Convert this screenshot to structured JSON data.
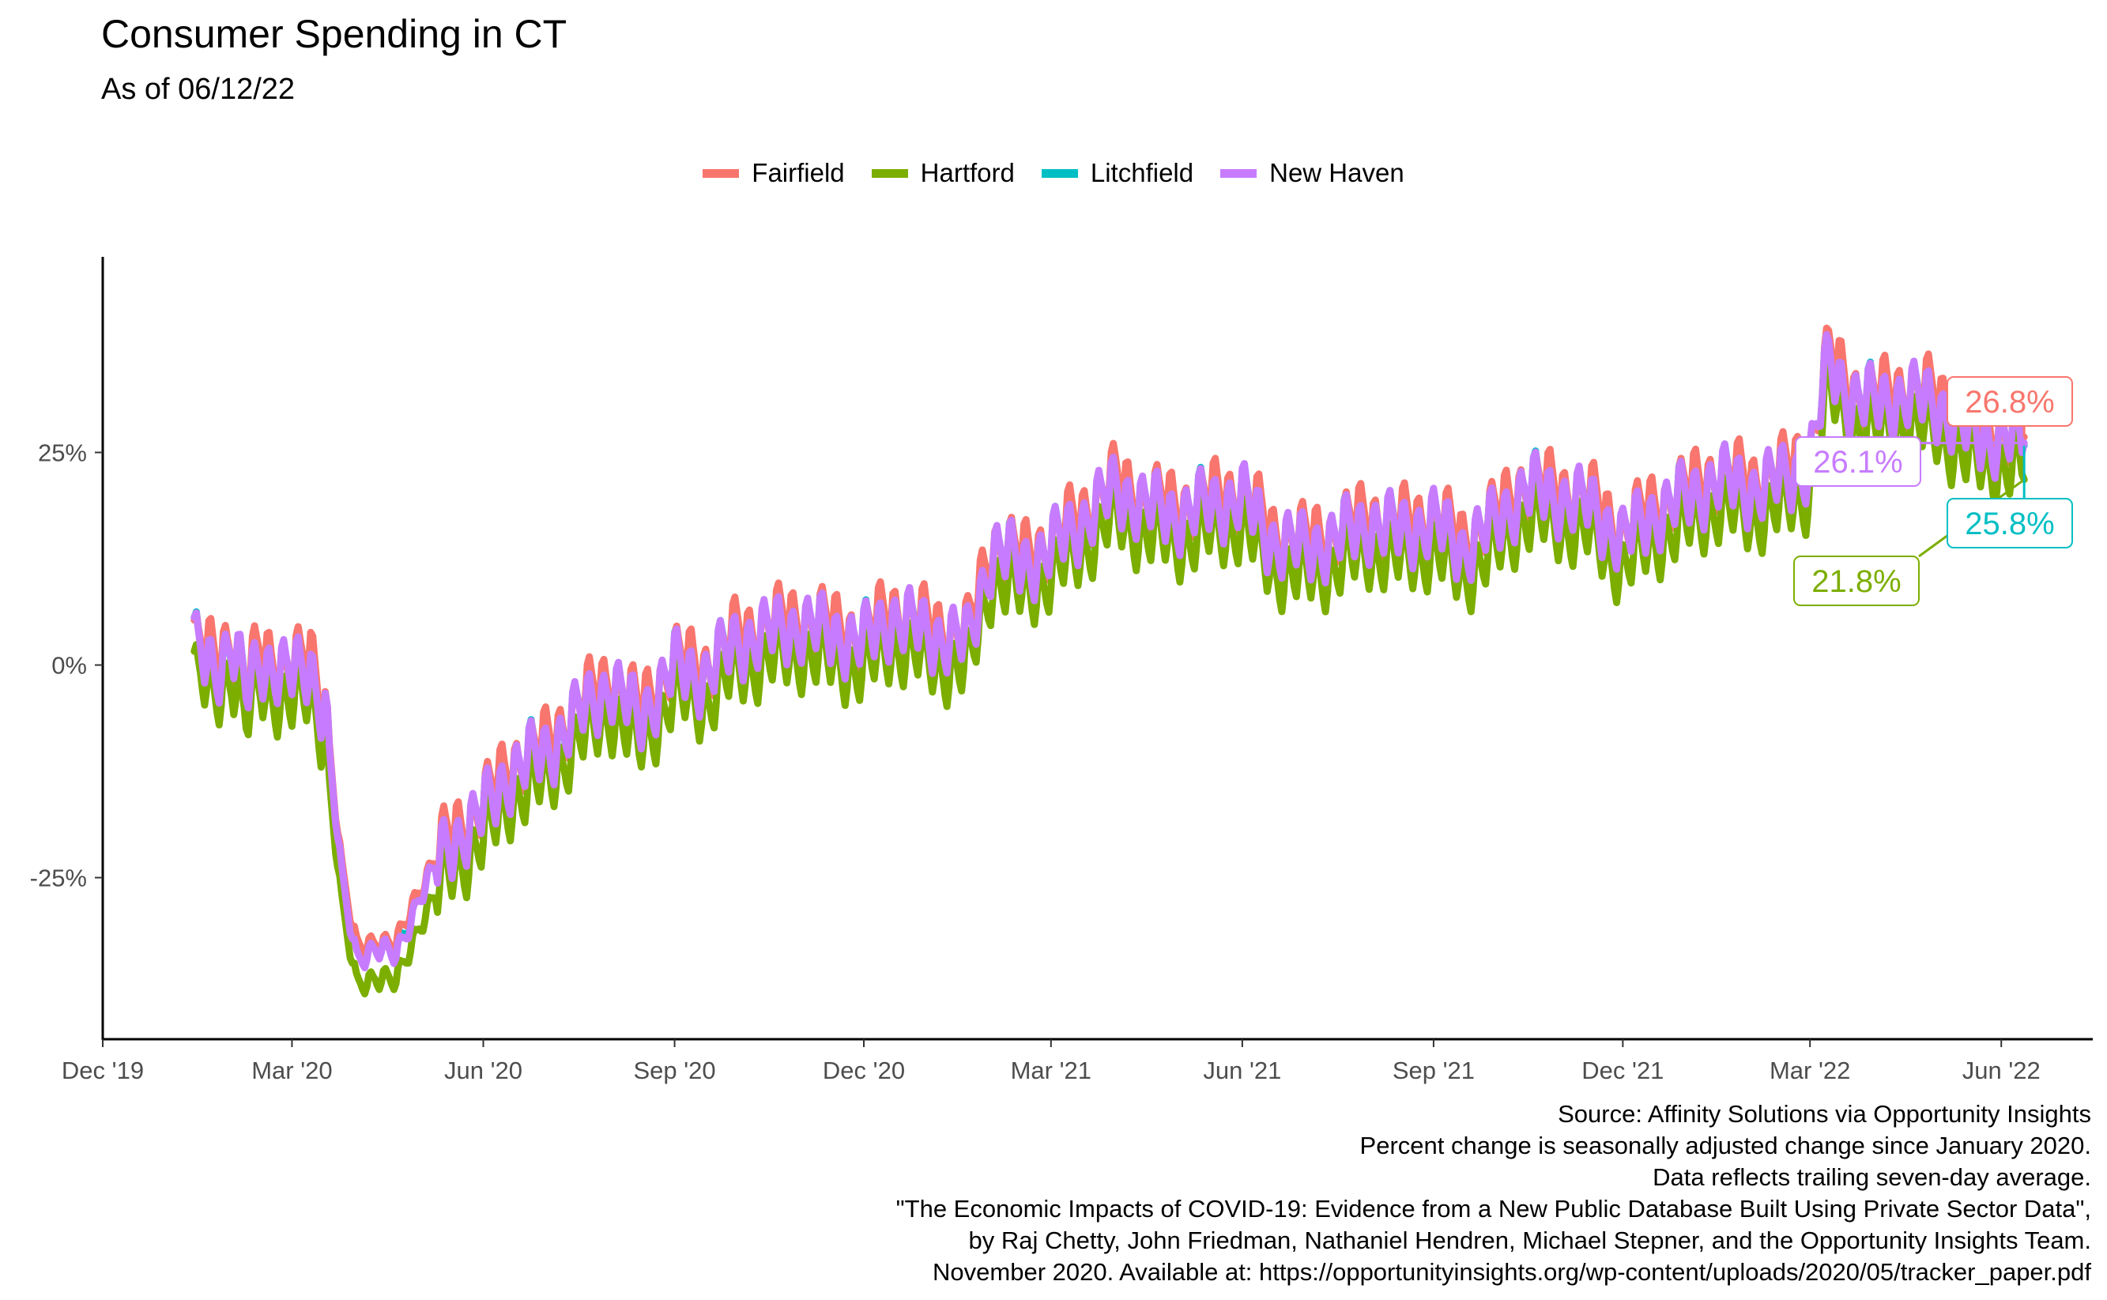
{
  "chart_data": {
    "type": "line",
    "title": "Consumer Spending in CT",
    "subtitle": "As of 06/12/22",
    "xlabel": "",
    "ylabel": "",
    "x_start": "2020-01-14",
    "x_end": "2022-06-12",
    "xlim": [
      "2019-12-01",
      "2022-07-15"
    ],
    "ylim": [
      -44,
      48
    ],
    "x_ticks": [
      {
        "date": "2019-12-01",
        "label": "Dec '19"
      },
      {
        "date": "2020-03-01",
        "label": "Mar '20"
      },
      {
        "date": "2020-06-01",
        "label": "Jun '20"
      },
      {
        "date": "2020-09-01",
        "label": "Sep '20"
      },
      {
        "date": "2020-12-01",
        "label": "Dec '20"
      },
      {
        "date": "2021-03-01",
        "label": "Mar '21"
      },
      {
        "date": "2021-06-01",
        "label": "Jun '21"
      },
      {
        "date": "2021-09-01",
        "label": "Sep '21"
      },
      {
        "date": "2021-12-01",
        "label": "Dec '21"
      },
      {
        "date": "2022-03-01",
        "label": "Mar '22"
      },
      {
        "date": "2022-06-01",
        "label": "Jun '22"
      }
    ],
    "y_ticks": [
      {
        "value": -25,
        "label": "-25%"
      },
      {
        "value": 0,
        "label": "0%"
      },
      {
        "value": 25,
        "label": "25%"
      }
    ],
    "grid": false,
    "legend_position": "top",
    "base_points": [
      [
        "2020-01-14",
        2
      ],
      [
        "2020-01-24",
        0
      ],
      [
        "2020-02-01",
        3
      ],
      [
        "2020-02-08",
        -3
      ],
      [
        "2020-02-15",
        1
      ],
      [
        "2020-03-01",
        -1
      ],
      [
        "2020-03-10",
        0
      ],
      [
        "2020-03-17",
        -5
      ],
      [
        "2020-03-25",
        -25
      ],
      [
        "2020-04-01",
        -34
      ],
      [
        "2020-04-10",
        -33
      ],
      [
        "2020-04-20",
        -34
      ],
      [
        "2020-05-01",
        -27
      ],
      [
        "2020-05-15",
        -21
      ],
      [
        "2020-06-01",
        -17
      ],
      [
        "2020-06-15",
        -12
      ],
      [
        "2020-07-01",
        -10
      ],
      [
        "2020-07-15",
        -6
      ],
      [
        "2020-08-01",
        -2
      ],
      [
        "2020-08-15",
        -6
      ],
      [
        "2020-09-01",
        0
      ],
      [
        "2020-09-15",
        -1
      ],
      [
        "2020-10-01",
        3
      ],
      [
        "2020-10-15",
        4
      ],
      [
        "2020-11-01",
        5
      ],
      [
        "2020-11-15",
        4
      ],
      [
        "2020-12-01",
        3
      ],
      [
        "2020-12-15",
        6
      ],
      [
        "2021-01-01",
        4
      ],
      [
        "2021-01-20",
        3
      ],
      [
        "2021-02-01",
        14
      ],
      [
        "2021-02-15",
        12
      ],
      [
        "2021-03-01",
        14
      ],
      [
        "2021-03-15",
        17
      ],
      [
        "2021-04-01",
        21
      ],
      [
        "2021-04-15",
        19
      ],
      [
        "2021-05-01",
        18
      ],
      [
        "2021-05-15",
        19
      ],
      [
        "2021-06-01",
        20
      ],
      [
        "2021-06-15",
        15
      ],
      [
        "2021-07-01",
        14
      ],
      [
        "2021-07-15",
        15
      ],
      [
        "2021-08-01",
        17
      ],
      [
        "2021-08-15",
        16
      ],
      [
        "2021-09-01",
        17
      ],
      [
        "2021-09-15",
        14
      ],
      [
        "2021-10-01",
        17
      ],
      [
        "2021-10-15",
        21
      ],
      [
        "2021-11-01",
        20
      ],
      [
        "2021-11-15",
        19
      ],
      [
        "2021-12-01",
        15
      ],
      [
        "2021-12-15",
        18
      ],
      [
        "2022-01-01",
        20
      ],
      [
        "2022-01-15",
        22
      ],
      [
        "2022-02-01",
        21
      ],
      [
        "2022-02-15",
        22
      ],
      [
        "2022-03-01",
        24
      ],
      [
        "2022-03-10",
        36
      ],
      [
        "2022-03-20",
        32
      ],
      [
        "2022-04-01",
        31
      ],
      [
        "2022-04-15",
        32
      ],
      [
        "2022-05-01",
        31
      ],
      [
        "2022-05-15",
        28
      ],
      [
        "2022-05-25",
        27
      ],
      [
        "2022-06-05",
        27
      ],
      [
        "2022-06-12",
        26.6
      ]
    ],
    "series": [
      {
        "name": "Fairfield",
        "color": "#F8766D",
        "offset": 0.7,
        "end_value": 26.8,
        "end_label": "26.8%"
      },
      {
        "name": "Hartford",
        "color": "#7CAE00",
        "offset": -3.5,
        "end_value": 21.8,
        "end_label": "21.8%"
      },
      {
        "name": "Litchfield",
        "color": "#00BFC4",
        "offset": 0.0,
        "end_value": 25.8,
        "end_label": "25.8%"
      },
      {
        "name": "New Haven",
        "color": "#C77CFF",
        "offset": -0.3,
        "end_value": 26.1,
        "end_label": "26.1%"
      }
    ]
  },
  "caption": {
    "lines": [
      "Source: Affinity Solutions via Opportunity Insights",
      "Percent change is seasonally adjusted change since January 2020.",
      "Data reflects trailing seven-day average.",
      "\"The Economic Impacts of COVID-19: Evidence from a New Public Database Built Using Private Sector Data\",",
      "by Raj Chetty, John Friedman, Nathaniel Hendren, Michael Stepner, and the Opportunity Insights Team.",
      "November 2020. Available at: https://opportunityinsights.org/wp-content/uploads/2020/05/tracker_paper.pdf"
    ]
  }
}
